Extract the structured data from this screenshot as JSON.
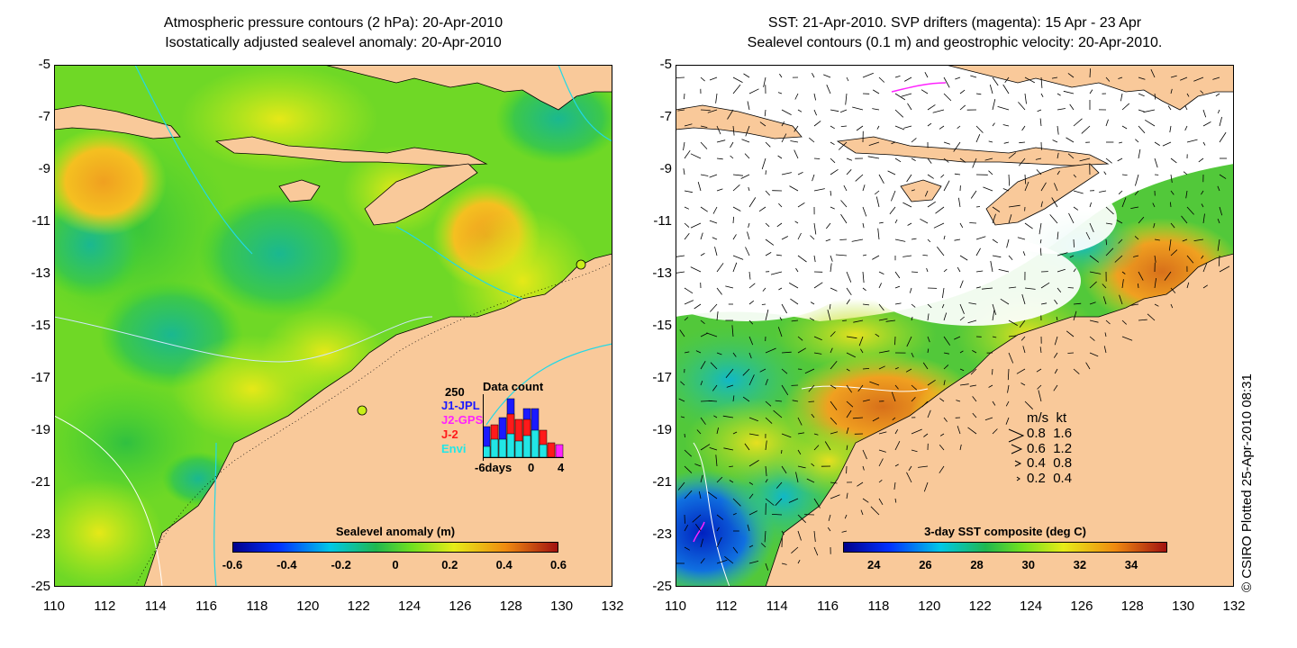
{
  "left_panel": {
    "title_line1": "Atmospheric pressure contours (2 hPa): 20-Apr-2010",
    "title_line2": "Isostatically adjusted sealevel anomaly: 20-Apr-2010",
    "colorbar": {
      "title": "Sealevel anomaly (m)",
      "ticks": [
        "-0.6",
        "-0.4",
        "-0.2",
        "0",
        "0.2",
        "0.4",
        "0.6"
      ],
      "range": [
        -0.6,
        0.6
      ]
    },
    "inset": {
      "title": "Data count",
      "ymax_label": "250",
      "series": [
        {
          "name": "J1-JPL",
          "color": "#1a1aff"
        },
        {
          "name": "J2-GPS",
          "color": "#ff22ff"
        },
        {
          "name": "J-2",
          "color": "#ff1a1a"
        },
        {
          "name": "Envi",
          "color": "#22e6e6"
        }
      ],
      "x_labels": [
        "-6days",
        "0",
        "4"
      ]
    }
  },
  "right_panel": {
    "title_line1": "SST: 21-Apr-2010. SVP drifters (magenta): 15 Apr - 23 Apr",
    "title_line2": "Sealevel contours (0.1 m) and geostrophic velocity: 20-Apr-2010.",
    "colorbar": {
      "title": "3-day SST composite (deg C)",
      "ticks": [
        "24",
        "26",
        "28",
        "30",
        "32",
        "34"
      ],
      "range": [
        22.8,
        35.4
      ]
    },
    "velocity_legend": {
      "header": "m/s  kt",
      "rows": [
        {
          "ms": "0.8",
          "kt": "1.6"
        },
        {
          "ms": "0.6",
          "kt": "1.2"
        },
        {
          "ms": "0.4",
          "kt": "0.8"
        },
        {
          "ms": "0.2",
          "kt": "0.4"
        }
      ]
    }
  },
  "axes": {
    "y_ticks": [
      "-5",
      "-7",
      "-9",
      "-11",
      "-13",
      "-15",
      "-17",
      "-19",
      "-21",
      "-23",
      "-25"
    ],
    "x_ticks": [
      "110",
      "112",
      "114",
      "116",
      "118",
      "120",
      "122",
      "124",
      "126",
      "128",
      "130",
      "132"
    ],
    "lat_range": [
      -25,
      -5
    ],
    "lon_range": [
      110,
      132
    ]
  },
  "credit": "© CSIRO Plotted 25-Apr-2010 08:31",
  "colors": {
    "land": "#f9c99a",
    "sea_green": "#44d22e",
    "sea_yellow": "#c8ee18",
    "cloud_white": "#ffffff"
  }
}
